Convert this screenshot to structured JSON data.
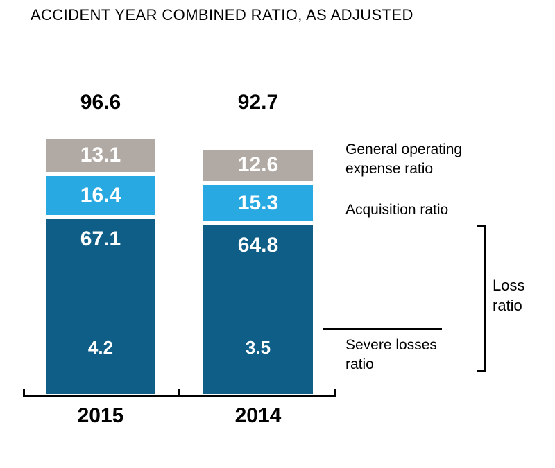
{
  "title": "ACCIDENT YEAR COMBINED RATIO, AS ADJUSTED",
  "chart_data": {
    "type": "bar",
    "variant": "stacked",
    "orientation": "vertical",
    "categories": [
      "2015",
      "2014"
    ],
    "totals": [
      "96.6",
      "92.7"
    ],
    "series": [
      {
        "name": "General operating expense ratio",
        "color": "#b1aaa4",
        "values": [
          13.1,
          12.6
        ]
      },
      {
        "name": "Acquisition ratio",
        "color": "#29a9e2",
        "values": [
          16.4,
          15.3
        ]
      },
      {
        "name": "Loss ratio",
        "color": "#0f5e87",
        "values": [
          67.1,
          64.8
        ]
      }
    ],
    "sub_segment": {
      "name": "Severe losses ratio",
      "values": [
        4.2,
        3.5
      ]
    },
    "title": "ACCIDENT YEAR COMBINED RATIO, AS ADJUSTED",
    "value_label_color": "#ffffff",
    "total_label_color": "#000000",
    "legend_position": "right",
    "grid": false,
    "ylim": [
      0,
      100
    ]
  },
  "colors": {
    "gray_segment": "#b1aaa4",
    "light_blue_segment": "#29a9e2",
    "dark_blue_segment": "#0f5e87",
    "axis": "#000000",
    "background": "#ffffff"
  }
}
